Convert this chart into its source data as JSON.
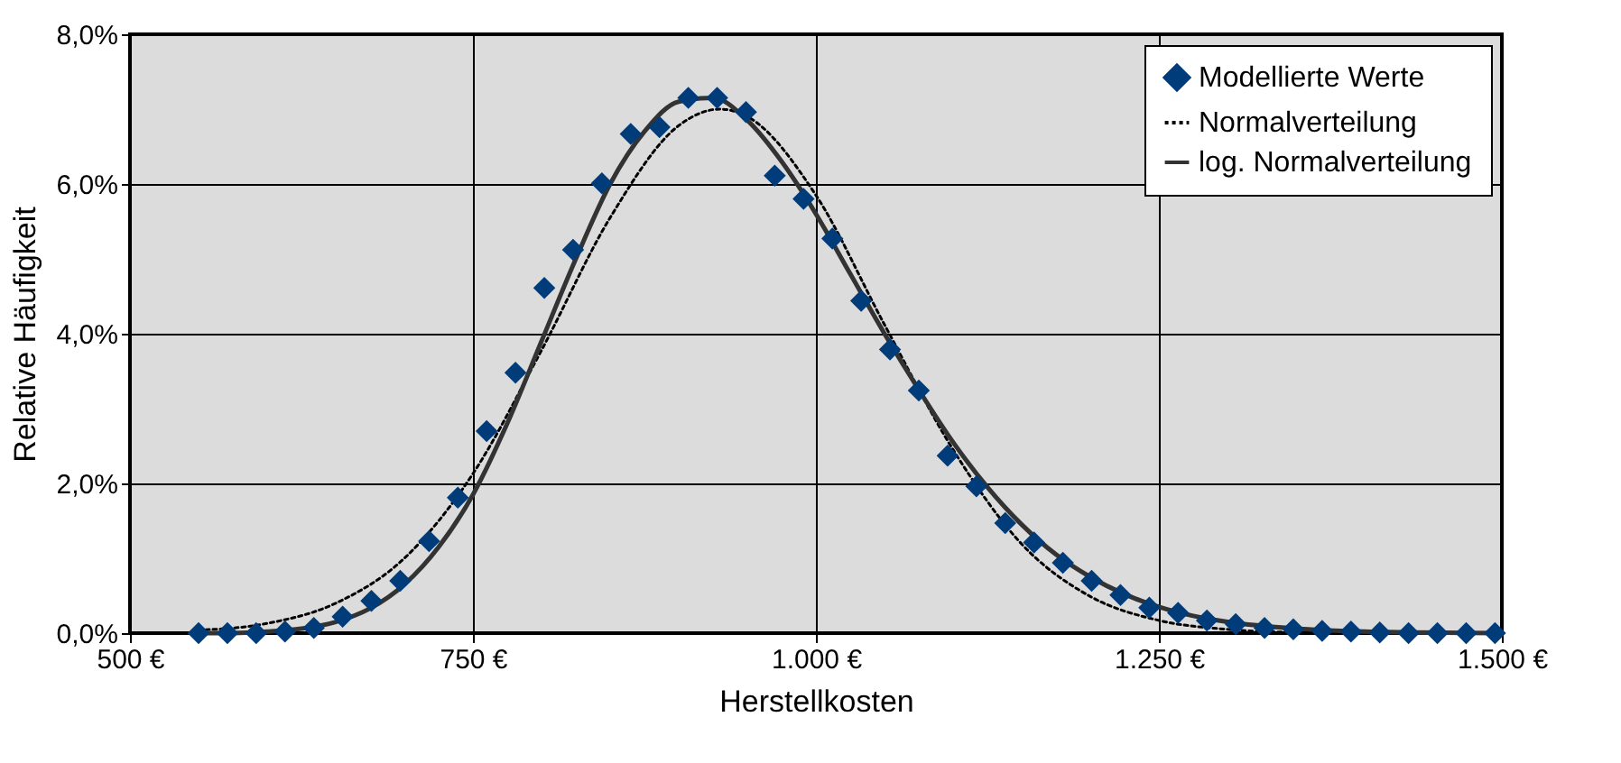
{
  "chart_data": {
    "type": "scatter",
    "xlabel": "Herstellkosten",
    "ylabel": "Relative Häufigkeit",
    "xlim": [
      500,
      1500
    ],
    "ylim": [
      0,
      8
    ],
    "xticks": [
      {
        "value": 500,
        "label": "500 €"
      },
      {
        "value": 750,
        "label": "750 €"
      },
      {
        "value": 1000,
        "label": "1.000 €"
      },
      {
        "value": 1250,
        "label": "1.250 €"
      },
      {
        "value": 1500,
        "label": "1.500 €"
      }
    ],
    "yticks": [
      {
        "value": 0,
        "label": "0,0%"
      },
      {
        "value": 2,
        "label": "2,0%"
      },
      {
        "value": 4,
        "label": "4,0%"
      },
      {
        "value": 6,
        "label": "6,0%"
      },
      {
        "value": 8,
        "label": "8,0%"
      }
    ],
    "grid": true,
    "legend": "top right",
    "series": [
      {
        "name": "Modellierte Werte",
        "type": "scatter",
        "marker": "diamond",
        "color": "#003b7a",
        "x": [
          550,
          571,
          592,
          613,
          634,
          655,
          676,
          697,
          718,
          739,
          760,
          781,
          802,
          823,
          844,
          865,
          886,
          907,
          928,
          949,
          970,
          991,
          1012,
          1033,
          1054,
          1075,
          1096,
          1117,
          1138,
          1159,
          1180,
          1201,
          1222,
          1243,
          1264,
          1285,
          1306,
          1327,
          1348,
          1369,
          1390,
          1411,
          1432,
          1453,
          1474,
          1495
        ],
        "values": [
          0,
          0,
          0,
          0.02,
          0.07,
          0.22,
          0.43,
          0.7,
          1.23,
          1.81,
          2.7,
          3.48,
          4.61,
          5.12,
          6.01,
          6.67,
          6.76,
          7.15,
          7.15,
          6.96,
          6.11,
          5.8,
          5.27,
          4.44,
          3.79,
          3.24,
          2.37,
          1.96,
          1.47,
          1.21,
          0.94,
          0.7,
          0.51,
          0.34,
          0.27,
          0.17,
          0.12,
          0.07,
          0.05,
          0.03,
          0.02,
          0.01,
          0,
          0,
          0,
          0
        ]
      },
      {
        "name": "Normalverteilung",
        "type": "line",
        "line_style": "dotted",
        "color": "#000000",
        "x": [
          550,
          600,
          650,
          700,
          750,
          800,
          850,
          900,
          930,
          950,
          1000,
          1050,
          1100,
          1150,
          1200,
          1250,
          1300,
          1350
        ],
        "values": [
          0.04,
          0.13,
          0.4,
          1.0,
          2.13,
          3.78,
          5.55,
          6.78,
          7.0,
          6.9,
          5.85,
          4.12,
          2.45,
          1.19,
          0.49,
          0.17,
          0.05,
          0.01
        ]
      },
      {
        "name": "log. Normalverteilung",
        "type": "line",
        "line_style": "solid",
        "color": "#333333",
        "x": [
          550,
          575,
          600,
          625,
          650,
          675,
          700,
          725,
          750,
          775,
          800,
          825,
          850,
          875,
          900,
          925,
          950,
          975,
          1000,
          1025,
          1050,
          1075,
          1100,
          1125,
          1150,
          1175,
          1200,
          1225,
          1250,
          1275,
          1300,
          1350,
          1400,
          1500
        ],
        "values": [
          0,
          0,
          0.02,
          0.06,
          0.15,
          0.33,
          0.65,
          1.15,
          1.85,
          2.8,
          3.9,
          5.0,
          6.0,
          6.7,
          7.1,
          7.15,
          6.85,
          6.3,
          5.6,
          4.8,
          4.0,
          3.25,
          2.55,
          1.95,
          1.45,
          1.05,
          0.75,
          0.52,
          0.35,
          0.23,
          0.15,
          0.06,
          0.02,
          0
        ]
      }
    ]
  }
}
